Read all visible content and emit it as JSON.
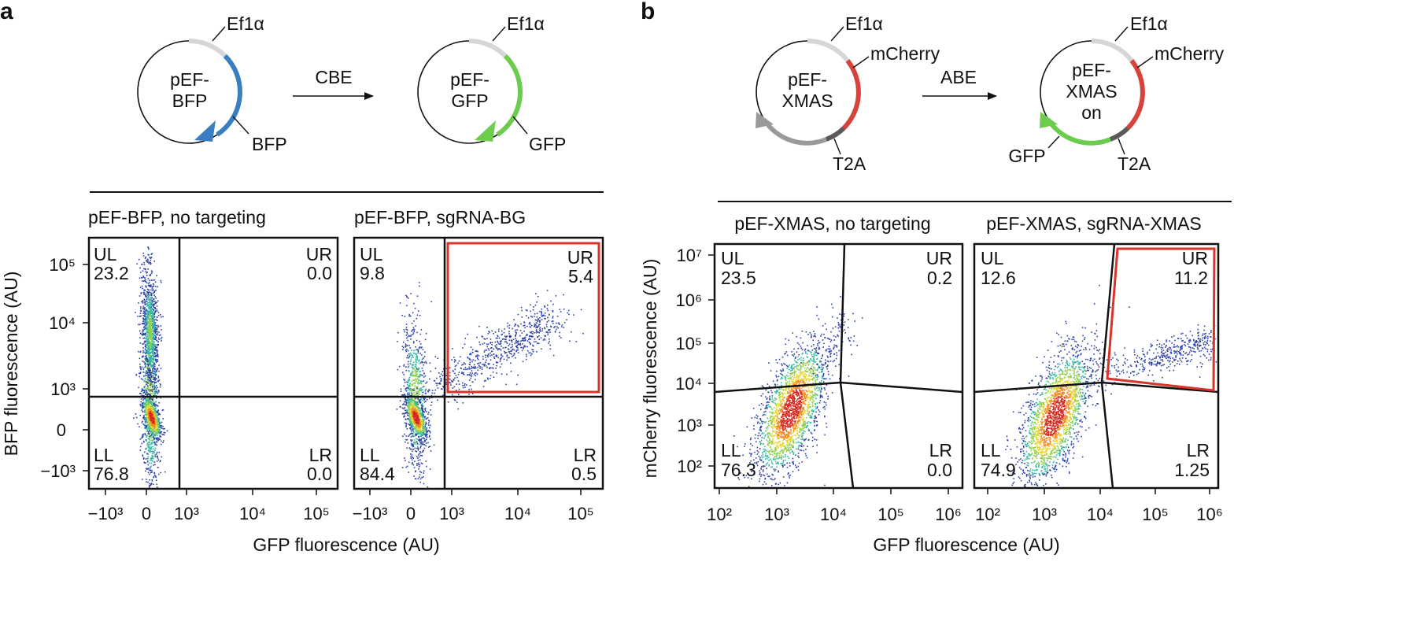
{
  "panels": {
    "a": {
      "letter": "a",
      "plasmid_left": {
        "line1": "pEF-",
        "line2": "BFP",
        "promoter": "Ef1α",
        "gene": "BFP"
      },
      "plasmid_right": {
        "line1": "pEF-",
        "line2": "GFP",
        "promoter": "Ef1α",
        "gene": "GFP"
      },
      "arrow_label": "CBE"
    },
    "b": {
      "letter": "b",
      "plasmid_left": {
        "line1": "pEF-",
        "line2": "XMAS",
        "promoter": "Ef1α",
        "gene1": "mCherry",
        "linker": "T2A"
      },
      "plasmid_right": {
        "line1": "pEF-",
        "line2": "XMAS",
        "line3": "on",
        "promoter": "Ef1α",
        "gene1": "mCherry",
        "gene2": "GFP",
        "linker": "T2A"
      },
      "arrow_label": "ABE"
    }
  },
  "colors": {
    "bfp": "#3a7ec2",
    "gfp": "#6dcc4e",
    "mcherry": "#d7423a",
    "ef1a": "#d6d6d6",
    "t2a": "#5a5a5a",
    "xmas_off": "#9a9a9a",
    "gate": "#d9342b",
    "density_low": "#2b3fa8",
    "density_high": "#d6281f"
  },
  "chart_data": [
    {
      "type": "scatter",
      "id": "a1",
      "title": "pEF-BFP, no targeting",
      "xlabel": "GFP fluorescence (AU)",
      "ylabel": "BFP fluorescence (AU)",
      "scale": "biexponential",
      "x_ticks": [
        "−10³",
        "0",
        "10³",
        "10⁴",
        "10⁵"
      ],
      "y_ticks": [
        "10⁵",
        "10⁴",
        "10³",
        "0",
        "−10³"
      ],
      "quadrants": [
        {
          "name": "UL",
          "value": "23.2"
        },
        {
          "name": "UR",
          "value": "0.0"
        },
        {
          "name": "LL",
          "value": "76.8"
        },
        {
          "name": "LR",
          "value": "0.0"
        }
      ]
    },
    {
      "type": "scatter",
      "id": "a2",
      "title": "pEF-BFP, sgRNA-BG",
      "xlabel": "GFP fluorescence (AU)",
      "scale": "biexponential",
      "x_ticks": [
        "−10³",
        "0",
        "10³",
        "10⁴",
        "10⁵"
      ],
      "quadrants": [
        {
          "name": "UL",
          "value": "9.8"
        },
        {
          "name": "UR",
          "value": "5.4"
        },
        {
          "name": "LL",
          "value": "84.4"
        },
        {
          "name": "LR",
          "value": "0.5"
        }
      ],
      "highlighted_gate": "UR"
    },
    {
      "type": "scatter",
      "id": "b1",
      "title": "pEF-XMAS, no targeting",
      "xlabel": "GFP fluorescence (AU)",
      "ylabel": "mCherry fluorescence (AU)",
      "scale": "log",
      "x_ticks": [
        "10²",
        "10³",
        "10⁴",
        "10⁵",
        "10⁶"
      ],
      "y_ticks": [
        "10⁷",
        "10⁶",
        "10⁵",
        "10⁴",
        "10³",
        "10²"
      ],
      "quadrants": [
        {
          "name": "UL",
          "value": "23.5"
        },
        {
          "name": "UR",
          "value": "0.2"
        },
        {
          "name": "LL",
          "value": "76.3"
        },
        {
          "name": "LR",
          "value": "0.0"
        }
      ]
    },
    {
      "type": "scatter",
      "id": "b2",
      "title": "pEF-XMAS, sgRNA-XMAS",
      "xlabel": "GFP fluorescence (AU)",
      "scale": "log",
      "x_ticks": [
        "10²",
        "10³",
        "10⁴",
        "10⁵",
        "10⁶"
      ],
      "quadrants": [
        {
          "name": "UL",
          "value": "12.6"
        },
        {
          "name": "UR",
          "value": "11.2"
        },
        {
          "name": "LL",
          "value": "74.9"
        },
        {
          "name": "LR",
          "value": "1.25"
        }
      ],
      "highlighted_gate": "UR"
    }
  ]
}
